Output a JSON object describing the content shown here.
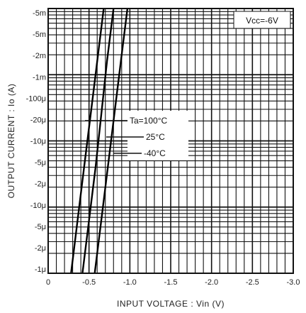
{
  "chart_data": {
    "type": "line",
    "title": "",
    "xlabel": "INPUT VOLTAGE : Vin (V)",
    "ylabel": "OUTPUT CURRENT : Io (A)",
    "condition": "Vcc=-6V",
    "xlim": [
      0,
      -3.0
    ],
    "ylim_exponent": [
      -6,
      -2
    ],
    "y_scale": "log",
    "x_tick_labels": [
      "0",
      "-0.5",
      "-1.0",
      "-1.5",
      "-2.0",
      "-2.5",
      "-3.0"
    ],
    "x_tick_values": [
      0,
      -0.5,
      -1.0,
      -1.5,
      -2.0,
      -2.5,
      -3.0
    ],
    "y_tick_labels": [
      "-5m",
      "-5m",
      "-2m",
      "-1m",
      "-100μ",
      "-20μ",
      "-10μ",
      "-5μ",
      "-2μ",
      "-10μ",
      "-5μ",
      "-2μ",
      "-1μ"
    ],
    "grid": true,
    "series": [
      {
        "name": "Ta=100°C",
        "x": [
          -0.28,
          -0.36,
          -0.44,
          -0.52,
          -0.6,
          -0.68
        ],
        "y_log10": [
          -6,
          -5.2,
          -4.4,
          -3.6,
          -2.8,
          -2.0
        ]
      },
      {
        "name": "25°C",
        "x": [
          -0.42,
          -0.5,
          -0.58,
          -0.65,
          -0.72,
          -0.8
        ],
        "y_log10": [
          -6,
          -5.2,
          -4.4,
          -3.6,
          -2.8,
          -2.0
        ]
      },
      {
        "name": "-40°C",
        "x": [
          -0.57,
          -0.65,
          -0.73,
          -0.81,
          -0.89,
          -0.97
        ],
        "y_log10": [
          -6,
          -5.2,
          -4.4,
          -3.6,
          -2.8,
          -2.0
        ]
      }
    ],
    "legend_labels": [
      "Ta=100°C",
      "25°C",
      "-40°C"
    ]
  }
}
